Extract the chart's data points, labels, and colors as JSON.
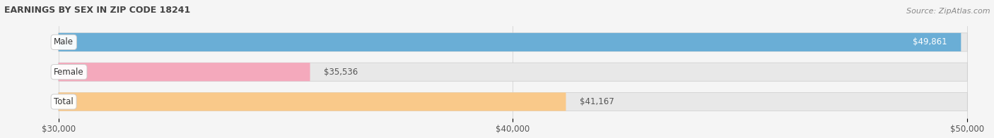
{
  "title": "EARNINGS BY SEX IN ZIP CODE 18241",
  "source": "Source: ZipAtlas.com",
  "categories": [
    "Male",
    "Female",
    "Total"
  ],
  "values": [
    49861,
    35536,
    41167
  ],
  "labels": [
    "$49,861",
    "$35,536",
    "$41,167"
  ],
  "bar_colors": [
    "#6aaed6",
    "#f4a9bc",
    "#f9c98a"
  ],
  "bar_background": "#e8e8e8",
  "xmin": 30000,
  "xmax": 50000,
  "xticks": [
    30000,
    40000,
    50000
  ],
  "xtick_labels": [
    "$30,000",
    "$40,000",
    "$50,000"
  ],
  "title_fontsize": 9,
  "source_fontsize": 8,
  "label_fontsize": 8.5,
  "tick_fontsize": 8.5,
  "category_fontsize": 8.5,
  "background_color": "#f5f5f5",
  "bar_height": 0.62,
  "bar_edge_color": "#cccccc",
  "value_label_color_male": "#ffffff",
  "value_label_color_female": "#555555",
  "value_label_color_total": "#555555"
}
